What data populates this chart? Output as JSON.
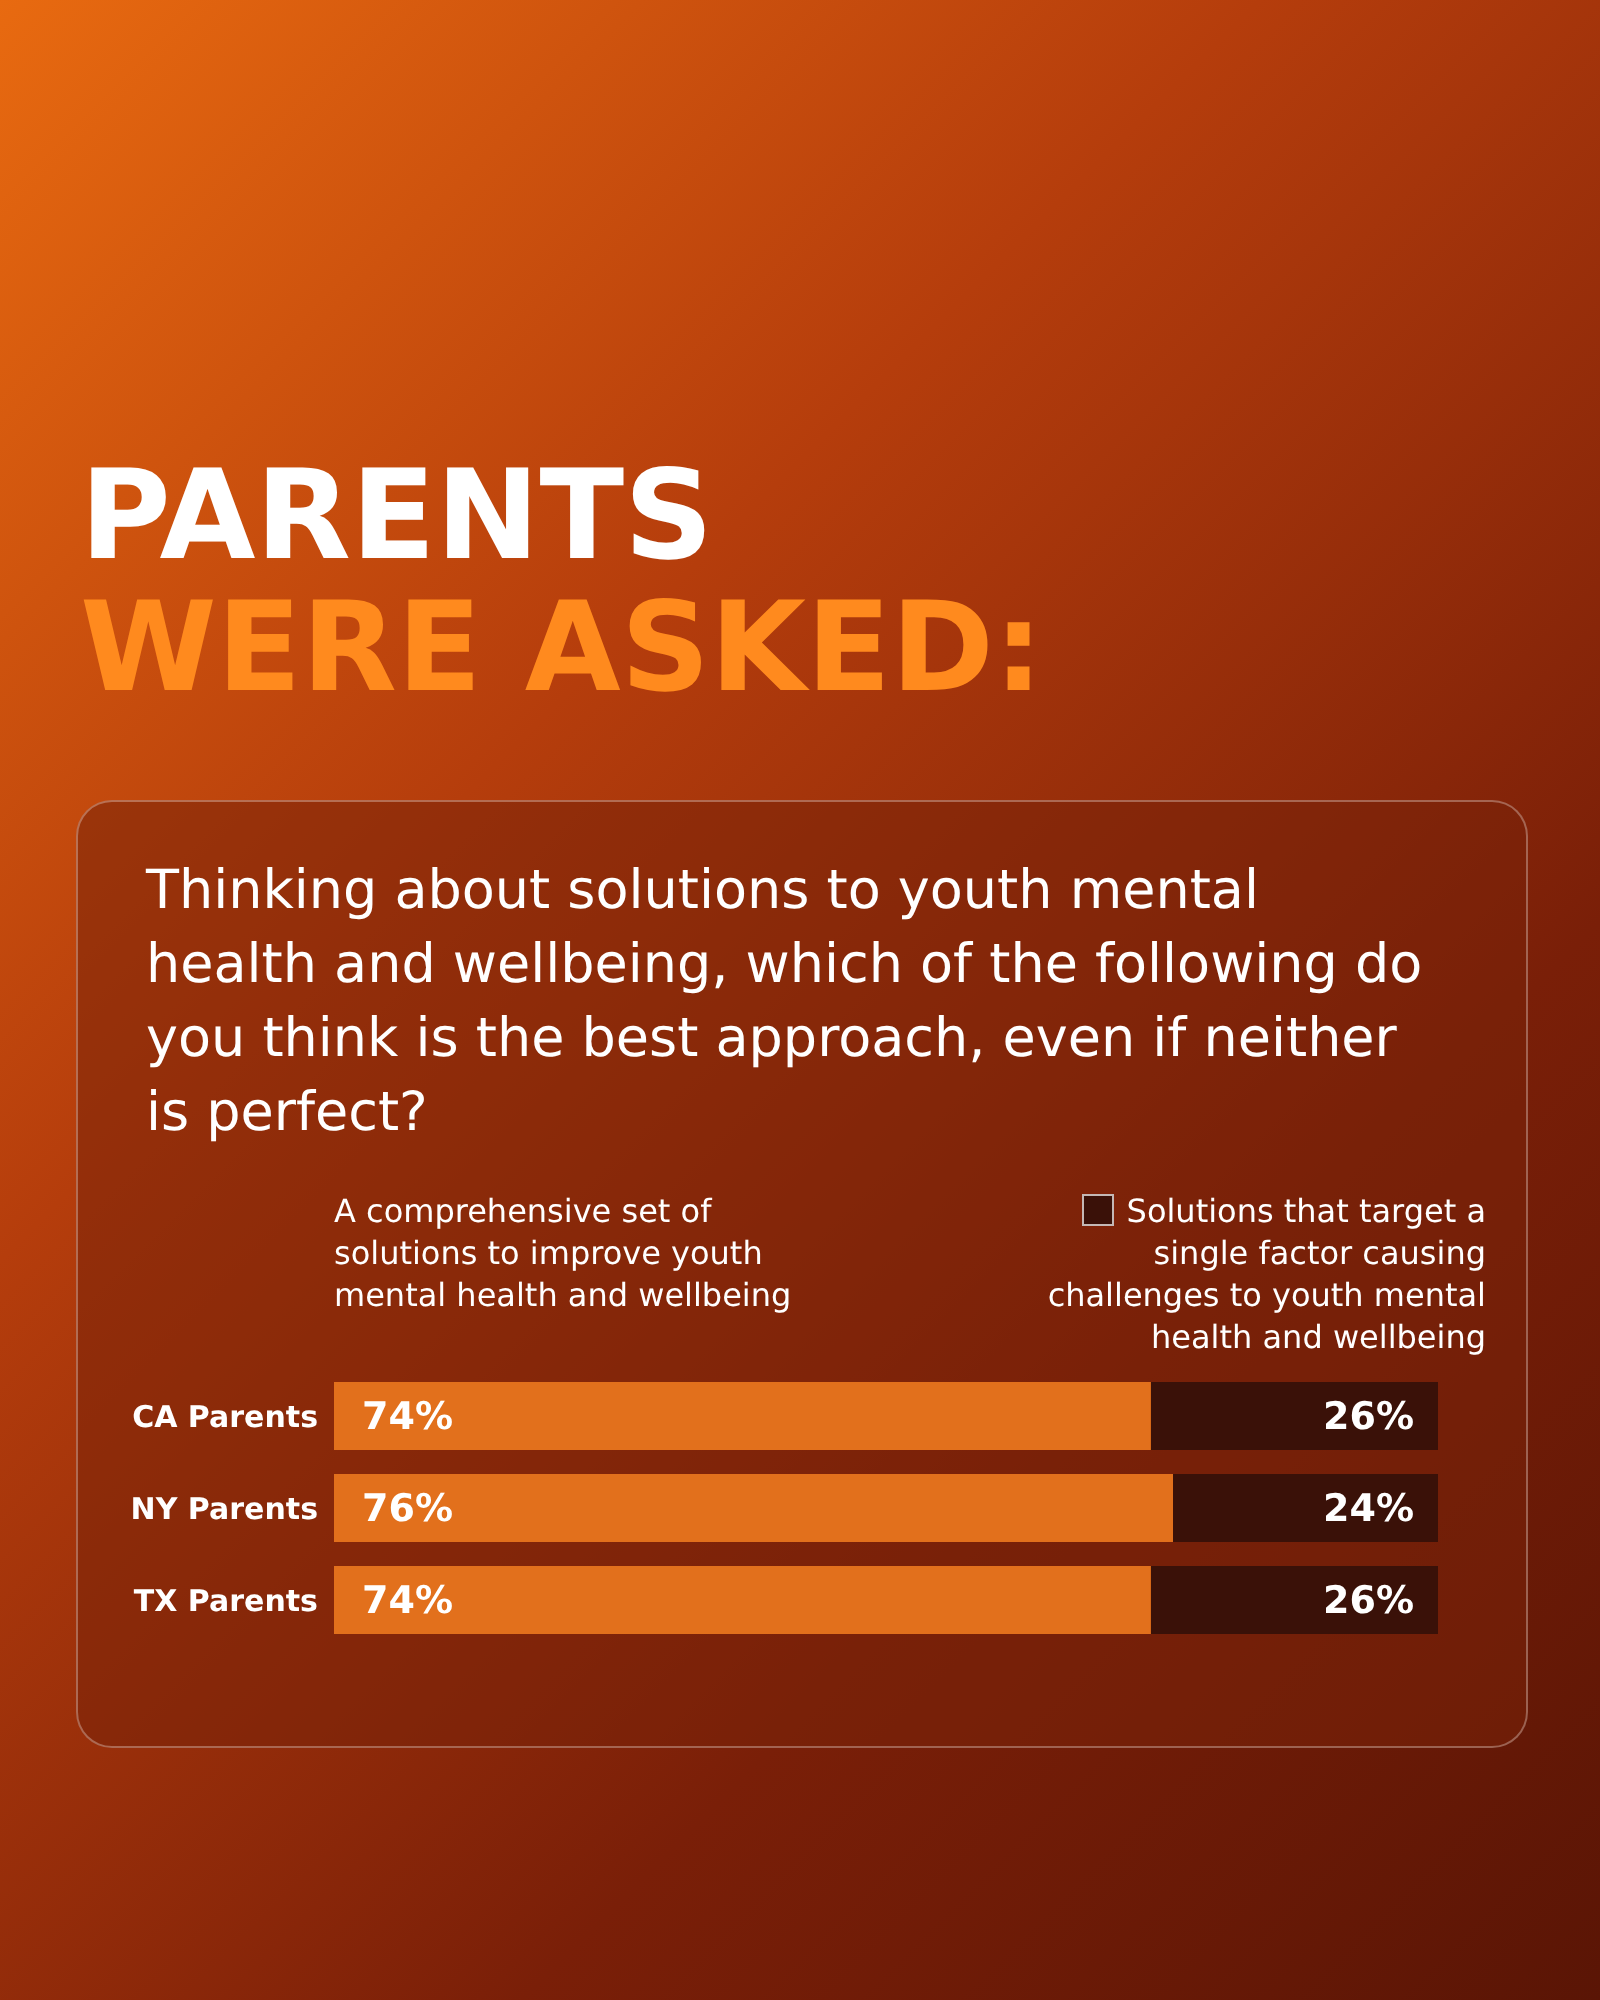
{
  "chart_data": {
    "type": "bar",
    "orientation": "horizontal",
    "stacked": true,
    "title": "PARENTS",
    "subtitle": "WERE ASKED:",
    "annotations": [
      "Thinking about solutions to youth mental health and wellbeing, which of the following do you think is the best approach, even if neither is perfect?"
    ],
    "categories": [
      "CA Parents",
      "NY Parents",
      "TX Parents"
    ],
    "series": [
      {
        "name": "A comprehensive set of solutions to improve youth mental health and wellbeing",
        "color": "#e2701c",
        "values": [
          74,
          76,
          74
        ],
        "value_labels": [
          "74%",
          "76%",
          "74%"
        ]
      },
      {
        "name": "Solutions that target a single factor causing challenges to youth mental health and wellbeing",
        "color": "#3a1108",
        "values": [
          26,
          24,
          26
        ],
        "value_labels": [
          "26%",
          "24%",
          "26%"
        ]
      }
    ],
    "legend": "top",
    "grid": false
  }
}
